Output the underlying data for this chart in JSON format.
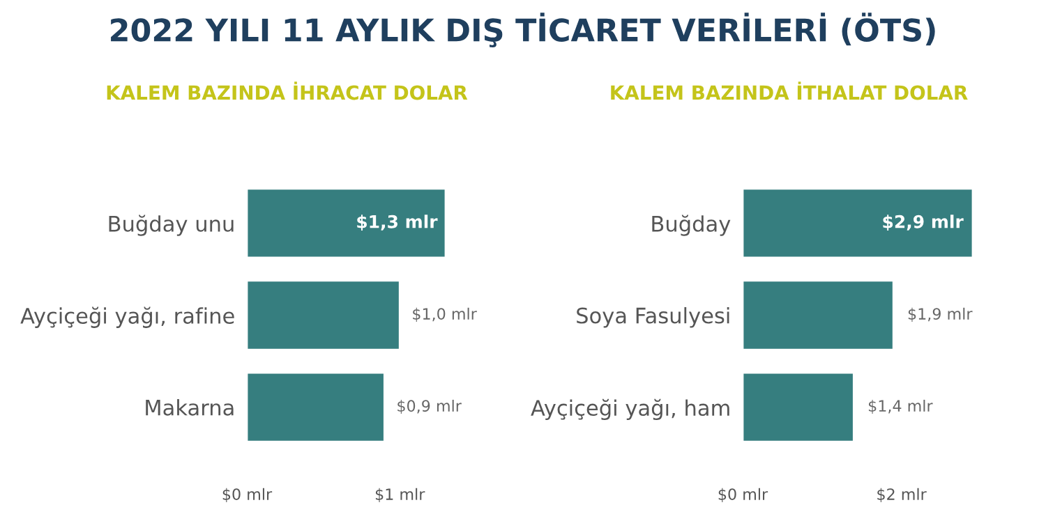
{
  "chart_data": [
    {
      "type": "bar",
      "orientation": "horizontal",
      "title": "2022 YILI 11 AYLIK DIŞ TİCARET VERİLERİ (ÖTS)",
      "subtitle": "KALEM BAZINDA İHRACAT DOLAR",
      "categories": [
        "Buğday unu",
        "Ayçiçeği yağı, rafine",
        "Makarna"
      ],
      "values": [
        1.3,
        1.0,
        0.9
      ],
      "color": "#367e7f",
      "value_labels": [
        "$1,3 mlr",
        "$1,0 mlr",
        "$0,9 mlr"
      ],
      "xlim": [
        0,
        1.3
      ],
      "xticks": [
        {
          "value": 0,
          "label": "$0 mlr"
        },
        {
          "value": 1,
          "label": "$1 mlr"
        }
      ],
      "grid": false,
      "legend": false
    },
    {
      "type": "bar",
      "orientation": "horizontal",
      "subtitle": "KALEM BAZINDA İTHALAT DOLAR",
      "categories": [
        "Buğday",
        "Soya Fasulyesi",
        "Ayçiçeği yağı, ham"
      ],
      "values": [
        2.9,
        1.9,
        1.4
      ],
      "color": "#367e7f",
      "value_labels": [
        "$2,9 mlr",
        "$1,9 mlr",
        "$1,4 mlr"
      ],
      "xlim": [
        0,
        2.9
      ],
      "xticks": [
        {
          "value": 0,
          "label": "$0 mlr"
        },
        {
          "value": 2,
          "label": "$2 mlr"
        }
      ],
      "grid": false,
      "legend": false
    }
  ]
}
